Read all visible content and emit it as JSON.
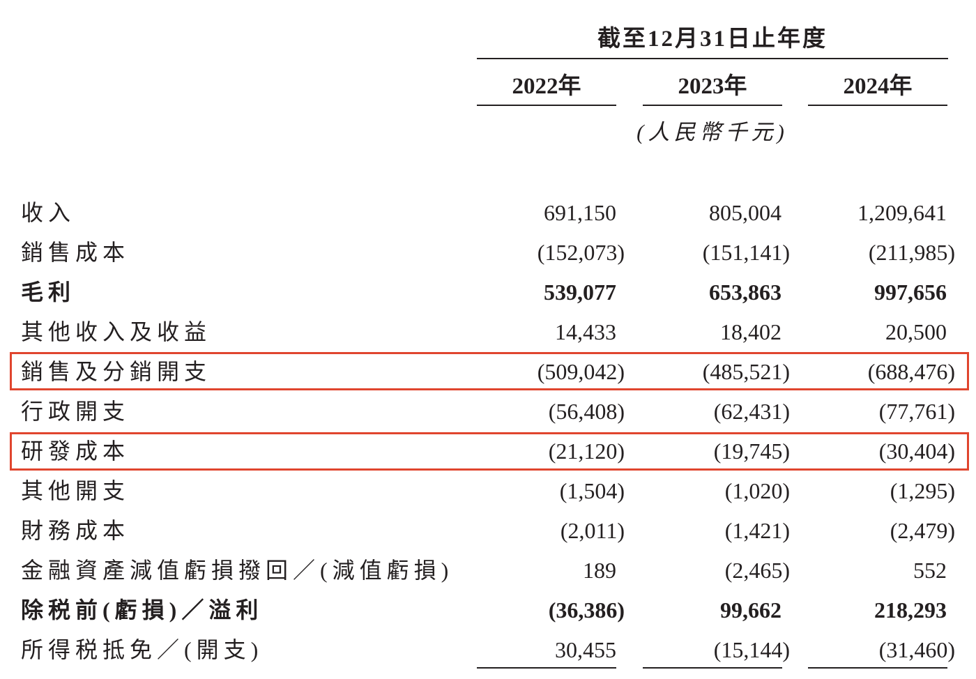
{
  "header": {
    "period": "截至12月31日止年度",
    "years": [
      "2022年",
      "2023年",
      "2024年"
    ],
    "unit": "(人民幣千元)"
  },
  "rows": [
    {
      "label": "收入",
      "values": [
        "691,150",
        "805,004",
        "1,209,641"
      ],
      "bold": false,
      "highlighted": false
    },
    {
      "label": "銷售成本",
      "values": [
        "(152,073)",
        "(151,141)",
        "(211,985)"
      ],
      "bold": false,
      "highlighted": false
    },
    {
      "label": "毛利",
      "values": [
        "539,077",
        "653,863",
        "997,656"
      ],
      "bold": true,
      "highlighted": false
    },
    {
      "label": "其他收入及收益",
      "values": [
        "14,433",
        "18,402",
        "20,500"
      ],
      "bold": false,
      "highlighted": false
    },
    {
      "label": "銷售及分銷開支",
      "values": [
        "(509,042)",
        "(485,521)",
        "(688,476)"
      ],
      "bold": false,
      "highlighted": true
    },
    {
      "label": "行政開支",
      "values": [
        "(56,408)",
        "(62,431)",
        "(77,761)"
      ],
      "bold": false,
      "highlighted": false
    },
    {
      "label": "研發成本",
      "values": [
        "(21,120)",
        "(19,745)",
        "(30,404)"
      ],
      "bold": false,
      "highlighted": true
    },
    {
      "label": "其他開支",
      "values": [
        "(1,504)",
        "(1,020)",
        "(1,295)"
      ],
      "bold": false,
      "highlighted": false
    },
    {
      "label": "財務成本",
      "values": [
        "(2,011)",
        "(1,421)",
        "(2,479)"
      ],
      "bold": false,
      "highlighted": false
    },
    {
      "label": "金融資產減值虧損撥回／(減值虧損)",
      "values": [
        "189",
        "(2,465)",
        "552"
      ],
      "bold": false,
      "highlighted": false
    },
    {
      "label": "除税前(虧損)／溢利",
      "values": [
        "(36,386)",
        "99,662",
        "218,293"
      ],
      "bold": true,
      "highlighted": false
    },
    {
      "label": "所得税抵免／(開支)",
      "values": [
        "30,455",
        "(15,144)",
        "(31,460)"
      ],
      "bold": false,
      "highlighted": false
    }
  ],
  "colors": {
    "text": "#231f20",
    "highlight_border": "#e0452e",
    "background": "#ffffff"
  }
}
